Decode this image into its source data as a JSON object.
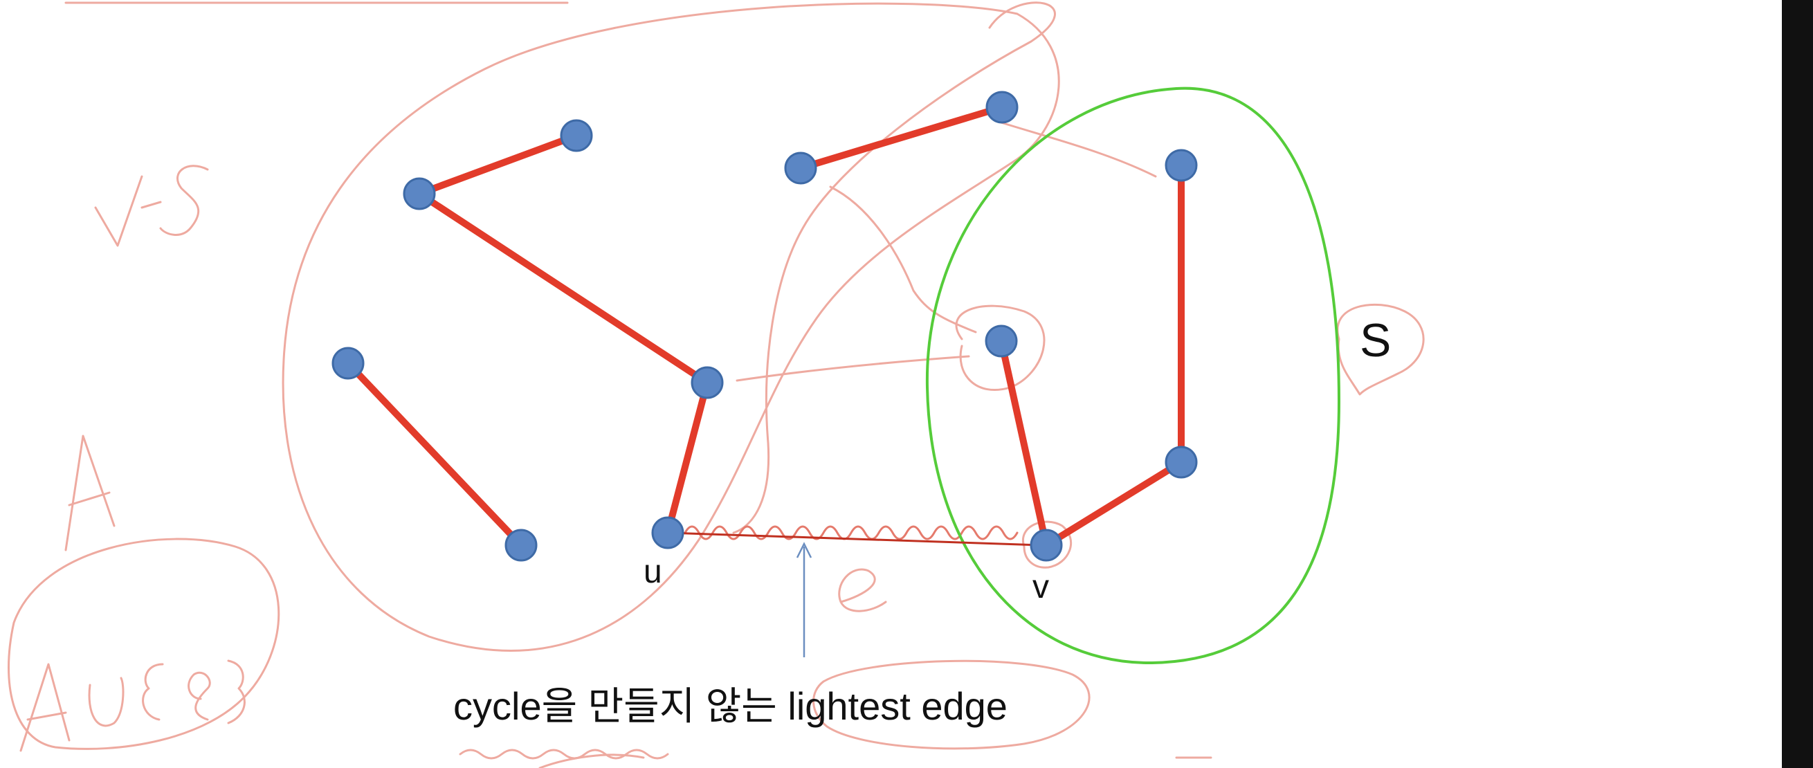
{
  "labels": {
    "u": "u",
    "v": "v",
    "s": "S",
    "caption": "cycle을 만들지 않는 lightest edge"
  },
  "annotations": {
    "v_minus_s": "V-S",
    "a": "A",
    "a_union_e": "A∪{e}",
    "e": "e"
  },
  "colors": {
    "node": "#5b86c4",
    "tree_edge": "#e23b2a",
    "set_s_boundary": "#55cc3a",
    "handwriting": "#eeaaa0"
  }
}
